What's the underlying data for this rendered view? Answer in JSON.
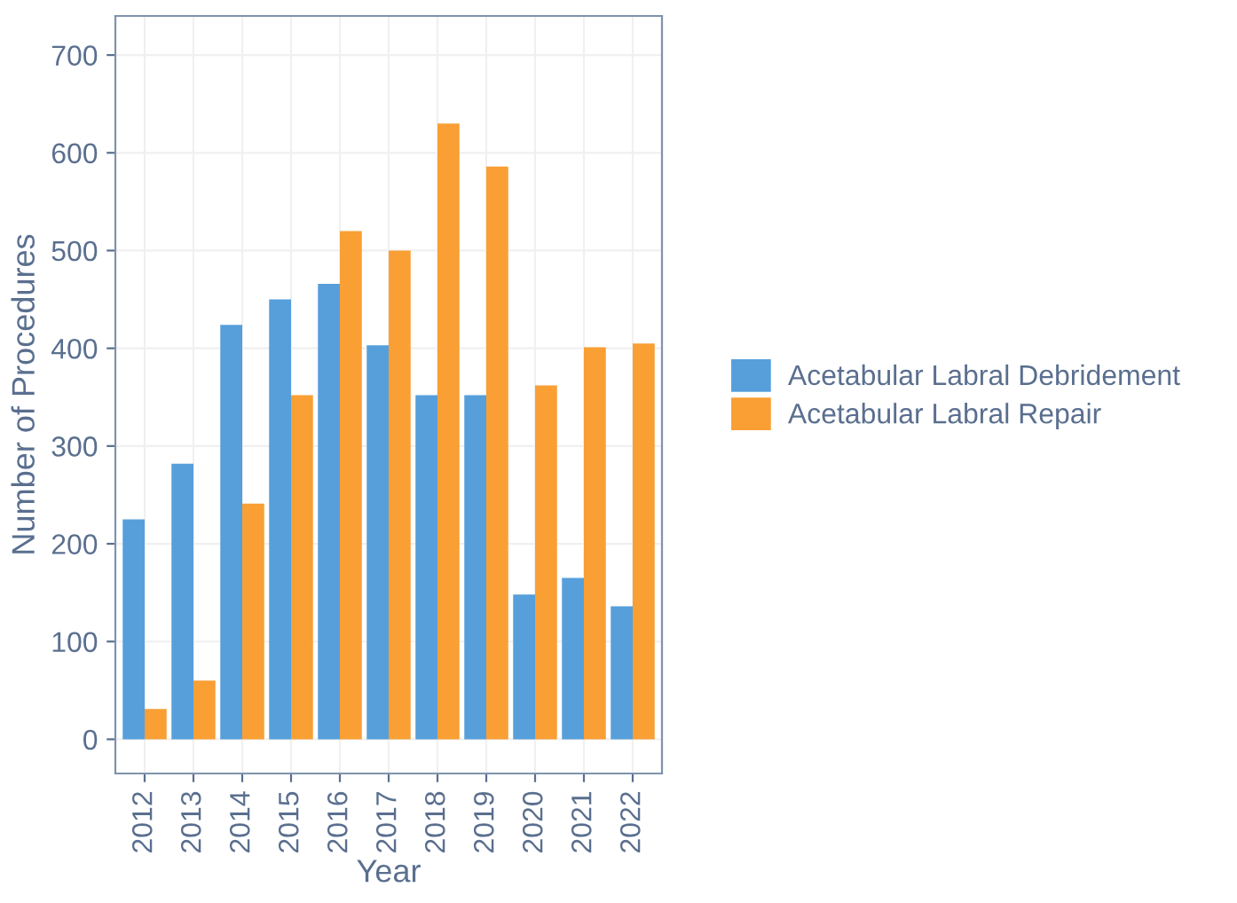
{
  "chart_data": {
    "type": "bar",
    "xlabel": "Year",
    "ylabel": "Number of Procedures",
    "categories": [
      "2012",
      "2013",
      "2014",
      "2015",
      "2016",
      "2017",
      "2018",
      "2019",
      "2020",
      "2021",
      "2022"
    ],
    "series": [
      {
        "name": "Acetabular Labral Debridement",
        "color": "#569fdb",
        "values": [
          225,
          282,
          424,
          450,
          466,
          403,
          352,
          352,
          148,
          165,
          136
        ]
      },
      {
        "name": "Acetabular Labral Repair",
        "color": "#f99f34",
        "values": [
          31,
          60,
          241,
          352,
          520,
          500,
          630,
          586,
          362,
          401,
          405
        ]
      }
    ],
    "ylim": [
      -35,
      740
    ],
    "yticks": [
      0,
      100,
      200,
      300,
      400,
      500,
      600,
      700
    ],
    "grid": true,
    "legend": "right"
  }
}
